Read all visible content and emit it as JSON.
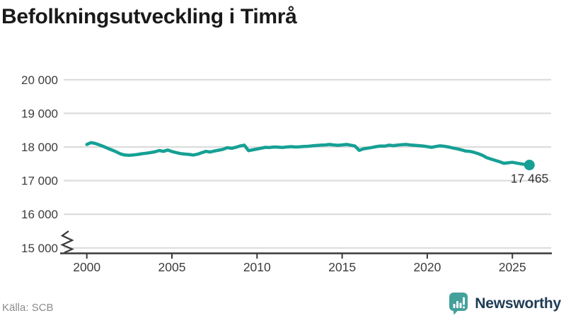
{
  "page": {
    "title": "Befolkningsutveckling i Timrå"
  },
  "footer": {
    "source": "Källa: SCB",
    "brand": "Newsworthy"
  },
  "colors": {
    "line_teal": "#16a095",
    "logo_teal": "#44a09b",
    "brand_navy": "#1d3c55",
    "grid_gray": "#dcdcdc",
    "axis_dark": "#3a3a3a",
    "tick_text": "#3d3d3d",
    "label_text": "#333333",
    "title_text": "#1a1a1a",
    "source_text": "#8c8c8c"
  },
  "chart_data": {
    "type": "line",
    "title": "Befolkningsutveckling i Timrå",
    "series_name": "Befolkning i Timrå",
    "xlabel": "",
    "ylabel": "",
    "grid": "horizontal",
    "legend": "none",
    "axis_break": true,
    "ylim_shown": [
      15000,
      20000
    ],
    "xlim": [
      2000,
      2026.3
    ],
    "y_ticks": [
      20000,
      19000,
      18000,
      17000,
      16000,
      15000
    ],
    "y_tick_labels": [
      "20 000",
      "19 000",
      "18 000",
      "17 000",
      "16 000",
      "15 000"
    ],
    "x_ticks": [
      2000,
      2005,
      2010,
      2015,
      2020,
      2025
    ],
    "x_tick_labels": [
      "2000",
      "2005",
      "2010",
      "2015",
      "2020",
      "2025"
    ],
    "end_label": "17 465",
    "end_value": 17465,
    "x": [
      2000,
      2000.25,
      2000.5,
      2000.75,
      2001,
      2001.25,
      2001.5,
      2001.75,
      2002,
      2002.25,
      2002.5,
      2002.75,
      2003,
      2003.25,
      2003.5,
      2003.75,
      2004,
      2004.25,
      2004.5,
      2004.75,
      2005,
      2005.25,
      2005.5,
      2005.75,
      2006,
      2006.25,
      2006.5,
      2006.75,
      2007,
      2007.25,
      2007.5,
      2007.75,
      2008,
      2008.25,
      2008.5,
      2008.75,
      2009,
      2009.25,
      2009.5,
      2009.75,
      2010,
      2010.25,
      2010.5,
      2010.75,
      2011,
      2011.25,
      2011.5,
      2011.75,
      2012,
      2012.25,
      2012.5,
      2012.75,
      2013,
      2013.25,
      2013.5,
      2013.75,
      2014,
      2014.25,
      2014.5,
      2014.75,
      2015,
      2015.25,
      2015.5,
      2015.75,
      2016,
      2016.25,
      2016.5,
      2016.75,
      2017,
      2017.25,
      2017.5,
      2017.75,
      2018,
      2018.25,
      2018.5,
      2018.75,
      2019,
      2019.25,
      2019.5,
      2019.75,
      2020,
      2020.25,
      2020.5,
      2020.75,
      2021,
      2021.25,
      2021.5,
      2021.75,
      2022,
      2022.25,
      2022.5,
      2022.75,
      2023,
      2023.25,
      2023.5,
      2023.75,
      2024,
      2024.25,
      2024.5,
      2024.75,
      2025,
      2025.25,
      2025.5,
      2025.75,
      2026
    ],
    "values": [
      18075,
      18130,
      18105,
      18060,
      18010,
      17955,
      17905,
      17850,
      17790,
      17760,
      17755,
      17765,
      17780,
      17800,
      17815,
      17835,
      17855,
      17895,
      17870,
      17910,
      17865,
      17835,
      17805,
      17790,
      17780,
      17760,
      17785,
      17830,
      17870,
      17850,
      17880,
      17905,
      17930,
      17980,
      17960,
      17990,
      18030,
      18055,
      17890,
      17915,
      17940,
      17965,
      17990,
      17985,
      18000,
      17995,
      17985,
      18000,
      18010,
      18000,
      18005,
      18015,
      18020,
      18035,
      18045,
      18055,
      18060,
      18075,
      18060,
      18050,
      18060,
      18075,
      18055,
      18030,
      17900,
      17945,
      17965,
      17985,
      18010,
      18030,
      18025,
      18055,
      18040,
      18055,
      18070,
      18075,
      18060,
      18050,
      18040,
      18030,
      18010,
      17990,
      18015,
      18035,
      18020,
      18000,
      17970,
      17945,
      17915,
      17880,
      17870,
      17840,
      17800,
      17750,
      17680,
      17640,
      17600,
      17560,
      17515,
      17530,
      17545,
      17520,
      17500,
      17480,
      17465
    ]
  }
}
